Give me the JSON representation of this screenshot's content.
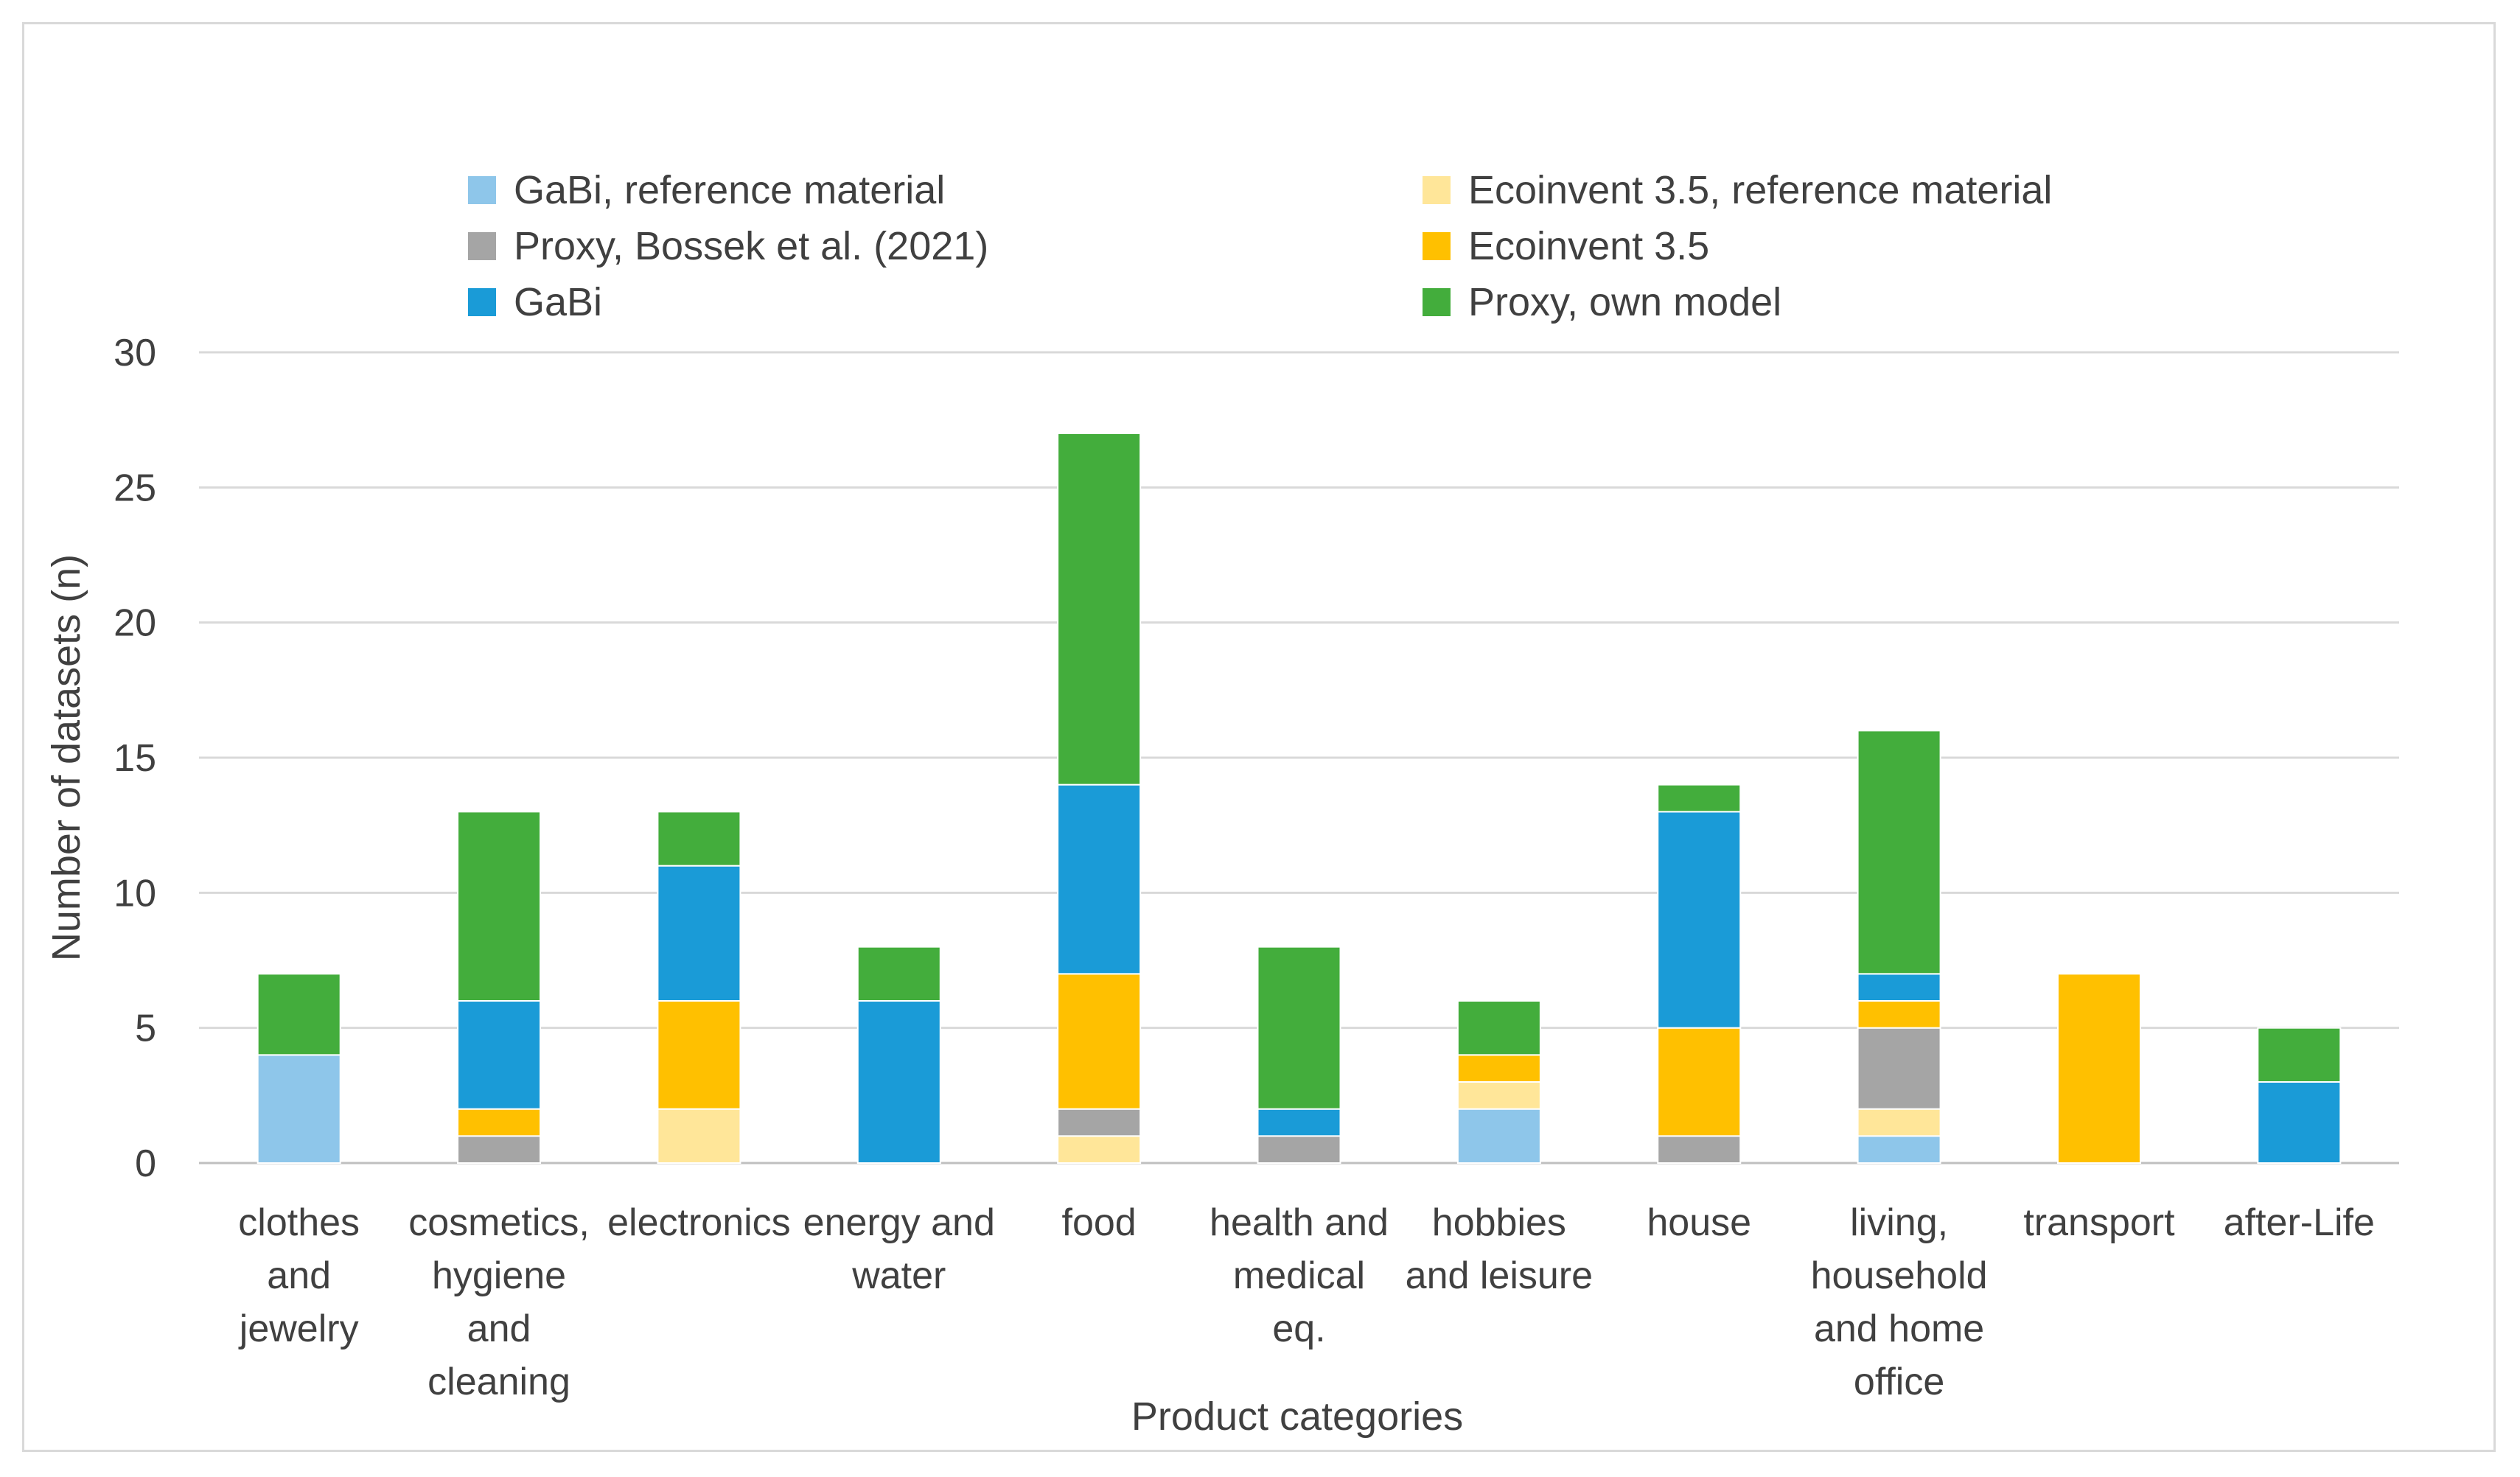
{
  "chart_data": {
    "type": "bar",
    "stacked": true,
    "title": "",
    "xlabel": "Product categories",
    "ylabel": "Number of datasets (n)",
    "ylim": [
      0,
      30
    ],
    "yticks": [
      0,
      5,
      10,
      15,
      20,
      25,
      30
    ],
    "grid": true,
    "legend_position": "top",
    "categories": [
      [
        "clothes",
        "and",
        "jewelry"
      ],
      [
        "cosmetics,",
        "hygiene",
        "and",
        "cleaning"
      ],
      [
        "electronics"
      ],
      [
        "energy and",
        "water"
      ],
      [
        "food"
      ],
      [
        "health and",
        "medical",
        "eq."
      ],
      [
        "hobbies",
        "and leisure"
      ],
      [
        "house"
      ],
      [
        "living,",
        "household",
        "and home",
        "office"
      ],
      [
        "transport"
      ],
      [
        "after-Life"
      ]
    ],
    "series": [
      {
        "name": "GaBi, reference material",
        "color": "#8ec6ea",
        "values": [
          4,
          0,
          0,
          0,
          0,
          0,
          2,
          0,
          1,
          0,
          0
        ]
      },
      {
        "name": "Ecoinvent 3.5, reference material",
        "color": "#ffe699",
        "values": [
          0,
          0,
          2,
          0,
          1,
          0,
          1,
          0,
          1,
          0,
          0
        ]
      },
      {
        "name": "Proxy, Bossek et al. (2021)",
        "color": "#a5a5a5",
        "values": [
          0,
          1,
          0,
          0,
          1,
          1,
          0,
          1,
          3,
          0,
          0
        ]
      },
      {
        "name": "Ecoinvent 3.5",
        "color": "#ffc000",
        "values": [
          0,
          1,
          4,
          0,
          5,
          0,
          1,
          4,
          1,
          7,
          0
        ]
      },
      {
        "name": "GaBi",
        "color": "#1a9bd7",
        "values": [
          0,
          4,
          5,
          6,
          7,
          1,
          0,
          8,
          1,
          0,
          3
        ]
      },
      {
        "name": "Proxy, own model",
        "color": "#43ad3c",
        "values": [
          3,
          7,
          2,
          2,
          13,
          6,
          2,
          1,
          9,
          0,
          2
        ]
      }
    ]
  }
}
